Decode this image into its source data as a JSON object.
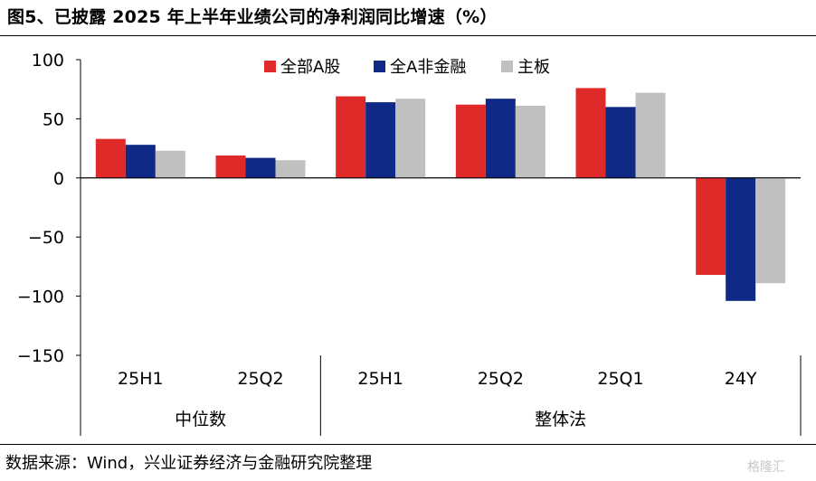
{
  "title": "图5、已披露 2025 年上半年业绩公司的净利润同比增速（%）",
  "source": "数据来源：Wind，兴业证券经济与金融研究院整理",
  "watermark": "格隆汇",
  "chart_data": {
    "type": "bar",
    "categories": [
      "25H1",
      "25Q2",
      "25H1",
      "25Q2",
      "25Q1",
      "24Y"
    ],
    "groups": [
      {
        "label": "中位数",
        "categories": [
          "25H1",
          "25Q2"
        ]
      },
      {
        "label": "整体法",
        "categories": [
          "25H1",
          "25Q2",
          "25Q1",
          "24Y"
        ]
      }
    ],
    "series": [
      {
        "name": "全部A股",
        "color": "#e02a2a",
        "values": [
          33,
          19,
          69,
          62,
          76,
          -82
        ]
      },
      {
        "name": "全A非金融",
        "color": "#0e2a86",
        "values": [
          28,
          17,
          64,
          67,
          60,
          -104
        ]
      },
      {
        "name": "主板",
        "color": "#c0c0c0",
        "values": [
          23,
          15,
          67,
          61,
          72,
          -89
        ]
      }
    ],
    "ylim": [
      -150,
      100
    ],
    "yticks": [
      100,
      50,
      0,
      -50,
      -100,
      -150
    ],
    "ytick_labels": [
      "100",
      "50",
      "0",
      "−50",
      "−100",
      "−150"
    ],
    "legend_position": "top-center",
    "grid": false
  }
}
